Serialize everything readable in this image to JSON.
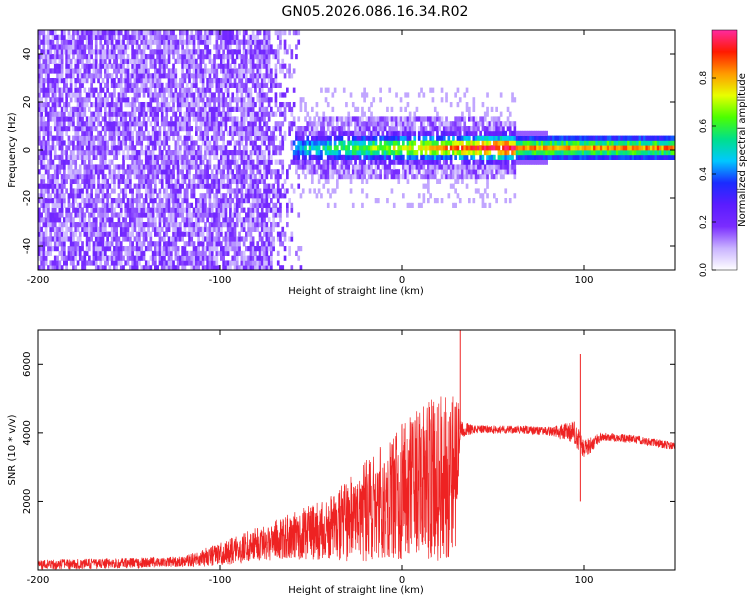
{
  "title": "GN05.2026.086.16.34.R02",
  "colors": {
    "snr_line": "#ee2222",
    "colormap": [
      "#ffffff",
      "#c9b3ff",
      "#7a2cff",
      "#5a1cff",
      "#1a2cff",
      "#00c8ff",
      "#00e08a",
      "#4cff00",
      "#e8ff00",
      "#ff9a00",
      "#ff1a00",
      "#ff2aa0"
    ]
  },
  "chart_data": [
    {
      "type": "heatmap",
      "name": "spectrogram",
      "xlabel": "Height of straight line (km)",
      "ylabel": "Frequency (Hz)",
      "xlim": [
        -200,
        150
      ],
      "ylim": [
        -50,
        50
      ],
      "x_ticks": [
        -200,
        -100,
        0,
        100
      ],
      "y_ticks": [
        -40,
        -20,
        0,
        20,
        40
      ],
      "colorbar": {
        "label": "Normalized spectral amplitude",
        "range": [
          0,
          1
        ],
        "ticks": [
          0.0,
          0.2,
          0.4,
          0.6,
          0.8
        ]
      },
      "features": [
        {
          "x_range": [
            -200,
            -60
          ],
          "description": "broadband noise",
          "amplitude": 0.2
        },
        {
          "x_range": [
            -60,
            60
          ],
          "center_hz": 0,
          "amplitude": 0.5
        },
        {
          "x_range": [
            65,
            150
          ],
          "center_hz": 0,
          "amplitude": 0.9
        }
      ]
    },
    {
      "type": "line",
      "name": "snr",
      "xlabel": "Height of straight line (km)",
      "ylabel": "SNR (10 * v/v)",
      "xlim": [
        -200,
        150
      ],
      "ylim": [
        0,
        7000
      ],
      "x_ticks": [
        -200,
        -100,
        0,
        100
      ],
      "y_ticks": [
        2000,
        4000,
        6000
      ],
      "series": [
        {
          "x": [
            -200,
            -150,
            -120,
            -100,
            -80,
            -60,
            -40,
            -20,
            -10,
            0,
            10,
            20,
            30,
            32,
            40,
            60,
            80,
            95,
            100,
            110,
            130,
            150
          ],
          "mean": [
            150,
            200,
            250,
            450,
            750,
            1000,
            1200,
            1700,
            2000,
            2300,
            2500,
            2700,
            3000,
            4100,
            4100,
            4100,
            4050,
            4000,
            3500,
            3900,
            3800,
            3600
          ],
          "noise": [
            150,
            150,
            150,
            350,
            500,
            700,
            900,
            1500,
            1700,
            2000,
            2300,
            2500,
            2500,
            250,
            120,
            120,
            120,
            350,
            300,
            120,
            120,
            120
          ]
        }
      ],
      "spikes": [
        {
          "x": 32,
          "y": 7000
        },
        {
          "x": 98,
          "y": 6300
        },
        {
          "x": 98,
          "y": 2000
        }
      ]
    }
  ]
}
